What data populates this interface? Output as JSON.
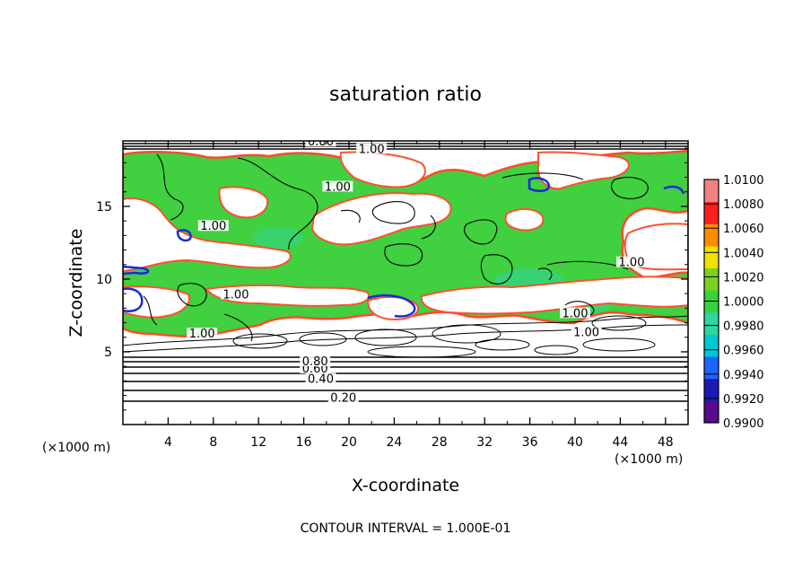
{
  "chart_data": {
    "type": "heatmap",
    "title": "saturation ratio",
    "xlabel": "X-coordinate",
    "ylabel": "Z-coordinate",
    "x_unit": "(×1000 m)",
    "y_unit": "(×1000 m)",
    "xlim": [
      0,
      50
    ],
    "ylim": [
      0,
      19.5
    ],
    "x_ticks": [
      4,
      8,
      12,
      16,
      20,
      24,
      28,
      32,
      36,
      40,
      44,
      48
    ],
    "y_ticks": [
      5,
      10,
      15
    ],
    "colorbar": {
      "levels": [
        "0.9900",
        "0.9920",
        "0.9940",
        "0.9960",
        "0.9980",
        "1.0000",
        "1.0020",
        "1.0040",
        "1.0060",
        "1.0080",
        "1.0100"
      ],
      "colors": [
        "#5a0a8c",
        "#1a1ab4",
        "#1e64ff",
        "#00c8d2",
        "#2ed6a0",
        "#36d23c",
        "#7ad21e",
        "#f0e100",
        "#ff8c00",
        "#ff1e1e",
        "#f08282"
      ]
    },
    "contour_labels": [
      {
        "text": "0.20",
        "x": 19.5,
        "z": 1.7
      },
      {
        "text": "0.40",
        "x": 17.5,
        "z": 3.0
      },
      {
        "text": "0.60",
        "x": 17.0,
        "z": 3.7
      },
      {
        "text": "0.80",
        "x": 17.0,
        "z": 4.2
      },
      {
        "text": "0.80",
        "x": 17.5,
        "z": 19.3
      },
      {
        "text": "1.00",
        "x": 22.0,
        "z": 18.8
      },
      {
        "text": "1.00",
        "x": 19.0,
        "z": 16.2
      },
      {
        "text": "1.00",
        "x": 8.0,
        "z": 13.5
      },
      {
        "text": "1.00",
        "x": 10.0,
        "z": 8.8
      },
      {
        "text": "1.00",
        "x": 7.0,
        "z": 6.1
      },
      {
        "text": "1.00",
        "x": 45.0,
        "z": 11.0
      },
      {
        "text": "1.00",
        "x": 40.0,
        "z": 7.5
      },
      {
        "text": "1.00",
        "x": 41.0,
        "z": 6.2
      }
    ],
    "footer": "CONTOUR INTERVAL = 1.000E-01"
  }
}
